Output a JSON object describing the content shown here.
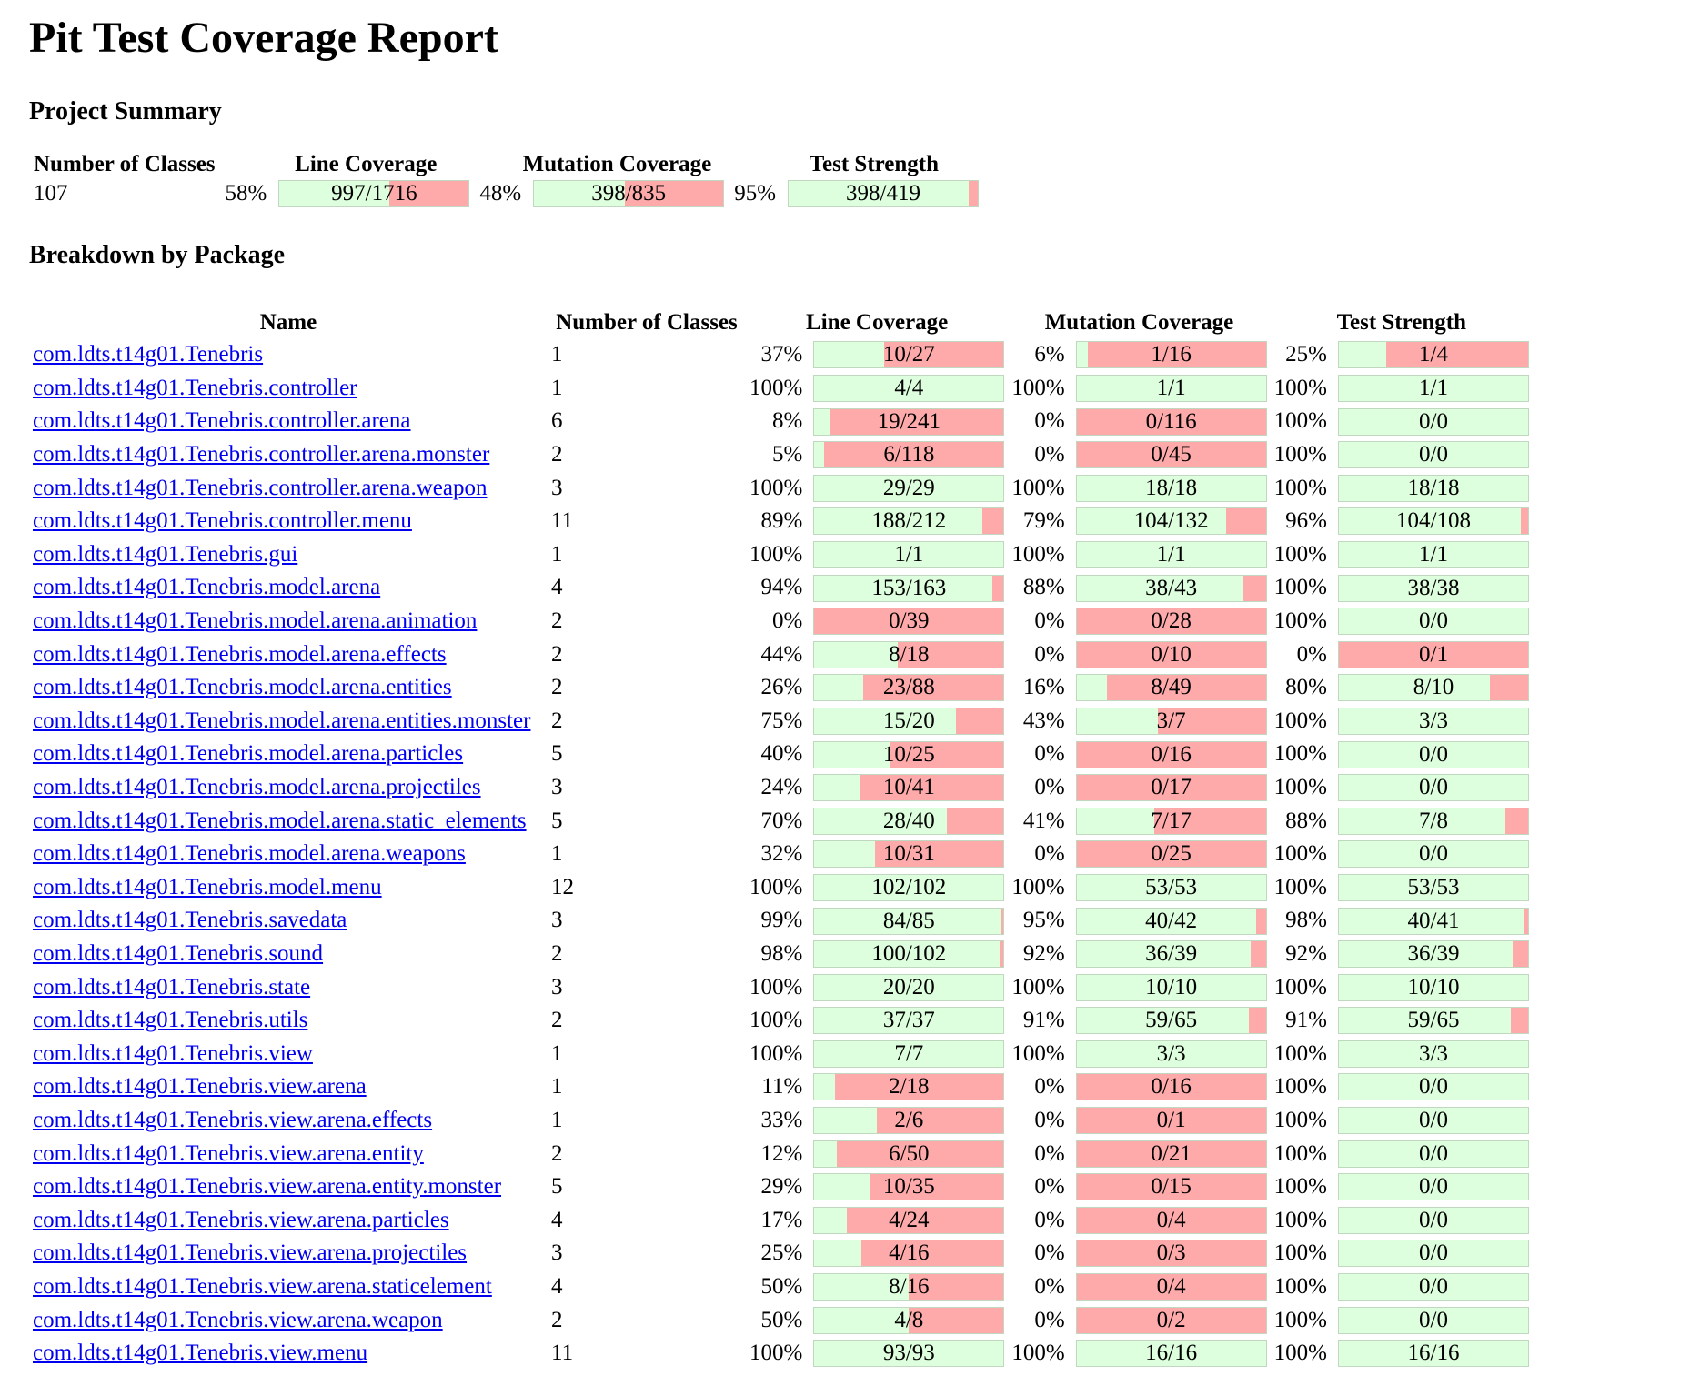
{
  "title": "Pit Test Coverage Report",
  "project_summary": {
    "heading": "Project Summary",
    "headers": [
      "Number of Classes",
      "Line Coverage",
      "Mutation Coverage",
      "Test Strength"
    ],
    "classes": "107",
    "line": {
      "pct": "58%",
      "text": "997/1716",
      "ratio": 0.58
    },
    "mutation": {
      "pct": "48%",
      "text": "398/835",
      "ratio": 0.48
    },
    "strength": {
      "pct": "95%",
      "text": "398/419",
      "ratio": 0.95
    }
  },
  "breakdown": {
    "heading": "Breakdown by Package",
    "headers": [
      "Name",
      "Number of Classes",
      "Line Coverage",
      "Mutation Coverage",
      "Test Strength"
    ],
    "rows": [
      {
        "name": "com.ldts.t14g01.Tenebris",
        "classes": "1",
        "line": [
          "37%",
          "10/27",
          0.37
        ],
        "mut": [
          "6%",
          "1/16",
          0.06
        ],
        "str": [
          "25%",
          "1/4",
          0.25
        ]
      },
      {
        "name": "com.ldts.t14g01.Tenebris.controller",
        "classes": "1",
        "line": [
          "100%",
          "4/4",
          1
        ],
        "mut": [
          "100%",
          "1/1",
          1
        ],
        "str": [
          "100%",
          "1/1",
          1
        ]
      },
      {
        "name": "com.ldts.t14g01.Tenebris.controller.arena",
        "classes": "6",
        "line": [
          "8%",
          "19/241",
          0.08
        ],
        "mut": [
          "0%",
          "0/116",
          0
        ],
        "str": [
          "100%",
          "0/0",
          1
        ]
      },
      {
        "name": "com.ldts.t14g01.Tenebris.controller.arena.monster",
        "classes": "2",
        "line": [
          "5%",
          "6/118",
          0.05
        ],
        "mut": [
          "0%",
          "0/45",
          0
        ],
        "str": [
          "100%",
          "0/0",
          1
        ]
      },
      {
        "name": "com.ldts.t14g01.Tenebris.controller.arena.weapon",
        "classes": "3",
        "line": [
          "100%",
          "29/29",
          1
        ],
        "mut": [
          "100%",
          "18/18",
          1
        ],
        "str": [
          "100%",
          "18/18",
          1
        ]
      },
      {
        "name": "com.ldts.t14g01.Tenebris.controller.menu",
        "classes": "11",
        "line": [
          "89%",
          "188/212",
          0.89
        ],
        "mut": [
          "79%",
          "104/132",
          0.79
        ],
        "str": [
          "96%",
          "104/108",
          0.96
        ]
      },
      {
        "name": "com.ldts.t14g01.Tenebris.gui",
        "classes": "1",
        "line": [
          "100%",
          "1/1",
          1
        ],
        "mut": [
          "100%",
          "1/1",
          1
        ],
        "str": [
          "100%",
          "1/1",
          1
        ]
      },
      {
        "name": "com.ldts.t14g01.Tenebris.model.arena",
        "classes": "4",
        "line": [
          "94%",
          "153/163",
          0.94
        ],
        "mut": [
          "88%",
          "38/43",
          0.88
        ],
        "str": [
          "100%",
          "38/38",
          1
        ]
      },
      {
        "name": "com.ldts.t14g01.Tenebris.model.arena.animation",
        "classes": "2",
        "line": [
          "0%",
          "0/39",
          0
        ],
        "mut": [
          "0%",
          "0/28",
          0
        ],
        "str": [
          "100%",
          "0/0",
          1
        ]
      },
      {
        "name": "com.ldts.t14g01.Tenebris.model.arena.effects",
        "classes": "2",
        "line": [
          "44%",
          "8/18",
          0.44
        ],
        "mut": [
          "0%",
          "0/10",
          0
        ],
        "str": [
          "0%",
          "0/1",
          0
        ]
      },
      {
        "name": "com.ldts.t14g01.Tenebris.model.arena.entities",
        "classes": "2",
        "line": [
          "26%",
          "23/88",
          0.26
        ],
        "mut": [
          "16%",
          "8/49",
          0.16
        ],
        "str": [
          "80%",
          "8/10",
          0.8
        ]
      },
      {
        "name": "com.ldts.t14g01.Tenebris.model.arena.entities.monster",
        "classes": "2",
        "line": [
          "75%",
          "15/20",
          0.75
        ],
        "mut": [
          "43%",
          "3/7",
          0.43
        ],
        "str": [
          "100%",
          "3/3",
          1
        ]
      },
      {
        "name": "com.ldts.t14g01.Tenebris.model.arena.particles",
        "classes": "5",
        "line": [
          "40%",
          "10/25",
          0.4
        ],
        "mut": [
          "0%",
          "0/16",
          0
        ],
        "str": [
          "100%",
          "0/0",
          1
        ]
      },
      {
        "name": "com.ldts.t14g01.Tenebris.model.arena.projectiles",
        "classes": "3",
        "line": [
          "24%",
          "10/41",
          0.24
        ],
        "mut": [
          "0%",
          "0/17",
          0
        ],
        "str": [
          "100%",
          "0/0",
          1
        ]
      },
      {
        "name": "com.ldts.t14g01.Tenebris.model.arena.static_elements",
        "classes": "5",
        "line": [
          "70%",
          "28/40",
          0.7
        ],
        "mut": [
          "41%",
          "7/17",
          0.41
        ],
        "str": [
          "88%",
          "7/8",
          0.88
        ]
      },
      {
        "name": "com.ldts.t14g01.Tenebris.model.arena.weapons",
        "classes": "1",
        "line": [
          "32%",
          "10/31",
          0.32
        ],
        "mut": [
          "0%",
          "0/25",
          0
        ],
        "str": [
          "100%",
          "0/0",
          1
        ]
      },
      {
        "name": "com.ldts.t14g01.Tenebris.model.menu",
        "classes": "12",
        "line": [
          "100%",
          "102/102",
          1
        ],
        "mut": [
          "100%",
          "53/53",
          1
        ],
        "str": [
          "100%",
          "53/53",
          1
        ]
      },
      {
        "name": "com.ldts.t14g01.Tenebris.savedata",
        "classes": "3",
        "line": [
          "99%",
          "84/85",
          0.99
        ],
        "mut": [
          "95%",
          "40/42",
          0.95
        ],
        "str": [
          "98%",
          "40/41",
          0.98
        ]
      },
      {
        "name": "com.ldts.t14g01.Tenebris.sound",
        "classes": "2",
        "line": [
          "98%",
          "100/102",
          0.98
        ],
        "mut": [
          "92%",
          "36/39",
          0.92
        ],
        "str": [
          "92%",
          "36/39",
          0.92
        ]
      },
      {
        "name": "com.ldts.t14g01.Tenebris.state",
        "classes": "3",
        "line": [
          "100%",
          "20/20",
          1
        ],
        "mut": [
          "100%",
          "10/10",
          1
        ],
        "str": [
          "100%",
          "10/10",
          1
        ]
      },
      {
        "name": "com.ldts.t14g01.Tenebris.utils",
        "classes": "2",
        "line": [
          "100%",
          "37/37",
          1
        ],
        "mut": [
          "91%",
          "59/65",
          0.91
        ],
        "str": [
          "91%",
          "59/65",
          0.91
        ]
      },
      {
        "name": "com.ldts.t14g01.Tenebris.view",
        "classes": "1",
        "line": [
          "100%",
          "7/7",
          1
        ],
        "mut": [
          "100%",
          "3/3",
          1
        ],
        "str": [
          "100%",
          "3/3",
          1
        ]
      },
      {
        "name": "com.ldts.t14g01.Tenebris.view.arena",
        "classes": "1",
        "line": [
          "11%",
          "2/18",
          0.11
        ],
        "mut": [
          "0%",
          "0/16",
          0
        ],
        "str": [
          "100%",
          "0/0",
          1
        ]
      },
      {
        "name": "com.ldts.t14g01.Tenebris.view.arena.effects",
        "classes": "1",
        "line": [
          "33%",
          "2/6",
          0.33
        ],
        "mut": [
          "0%",
          "0/1",
          0
        ],
        "str": [
          "100%",
          "0/0",
          1
        ]
      },
      {
        "name": "com.ldts.t14g01.Tenebris.view.arena.entity",
        "classes": "2",
        "line": [
          "12%",
          "6/50",
          0.12
        ],
        "mut": [
          "0%",
          "0/21",
          0
        ],
        "str": [
          "100%",
          "0/0",
          1
        ]
      },
      {
        "name": "com.ldts.t14g01.Tenebris.view.arena.entity.monster",
        "classes": "5",
        "line": [
          "29%",
          "10/35",
          0.29
        ],
        "mut": [
          "0%",
          "0/15",
          0
        ],
        "str": [
          "100%",
          "0/0",
          1
        ]
      },
      {
        "name": "com.ldts.t14g01.Tenebris.view.arena.particles",
        "classes": "4",
        "line": [
          "17%",
          "4/24",
          0.17
        ],
        "mut": [
          "0%",
          "0/4",
          0
        ],
        "str": [
          "100%",
          "0/0",
          1
        ]
      },
      {
        "name": "com.ldts.t14g01.Tenebris.view.arena.projectiles",
        "classes": "3",
        "line": [
          "25%",
          "4/16",
          0.25
        ],
        "mut": [
          "0%",
          "0/3",
          0
        ],
        "str": [
          "100%",
          "0/0",
          1
        ]
      },
      {
        "name": "com.ldts.t14g01.Tenebris.view.arena.staticelement",
        "classes": "4",
        "line": [
          "50%",
          "8/16",
          0.5
        ],
        "mut": [
          "0%",
          "0/4",
          0
        ],
        "str": [
          "100%",
          "0/0",
          1
        ]
      },
      {
        "name": "com.ldts.t14g01.Tenebris.view.arena.weapon",
        "classes": "2",
        "line": [
          "50%",
          "4/8",
          0.5
        ],
        "mut": [
          "0%",
          "0/2",
          0
        ],
        "str": [
          "100%",
          "0/0",
          1
        ]
      },
      {
        "name": "com.ldts.t14g01.Tenebris.view.menu",
        "classes": "11",
        "line": [
          "100%",
          "93/93",
          1
        ],
        "mut": [
          "100%",
          "16/16",
          1
        ],
        "str": [
          "100%",
          "16/16",
          1
        ]
      }
    ]
  },
  "colors": {
    "covered": "#ddffdd",
    "missed": "#ffaaaa",
    "link": "#0000ee"
  }
}
